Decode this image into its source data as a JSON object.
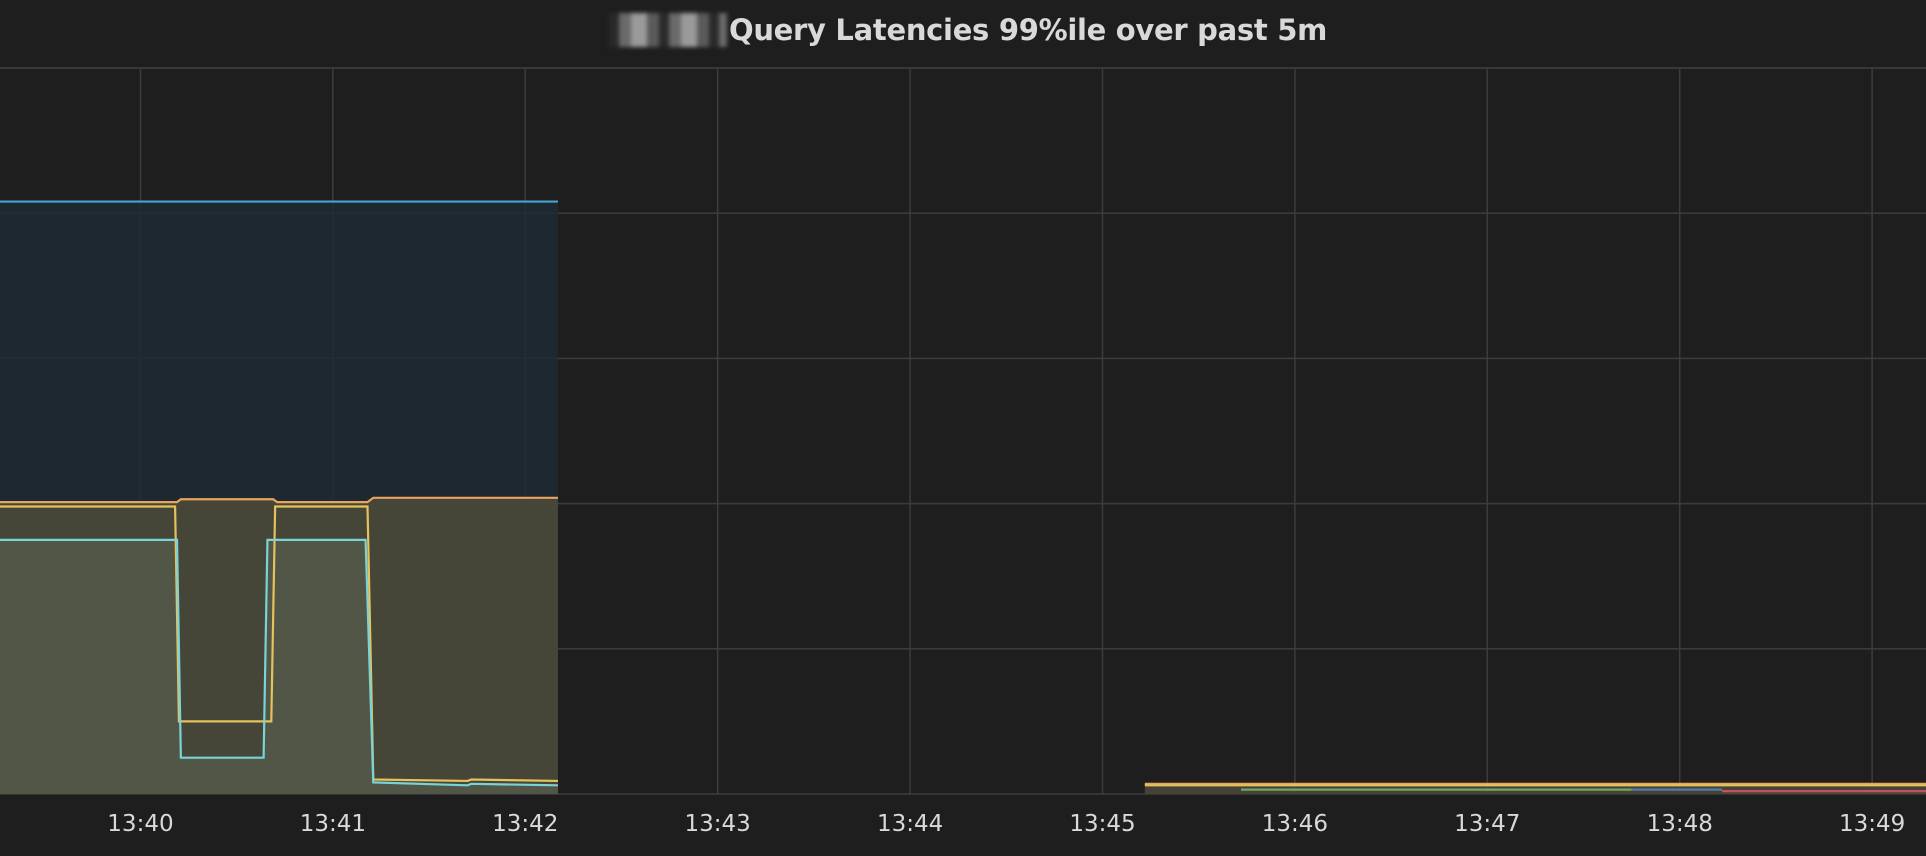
{
  "panel": {
    "title": "Query Latencies 99%ile over past 5m",
    "title_prefix_redacted": true
  },
  "colors": {
    "background": "#1f1e1f",
    "grid": "#3d3c3d",
    "axis_text": "#d8d9da",
    "blue": "#4aa0d6",
    "blue_fill": "#1f2a35",
    "orange": "#e8a35c",
    "yellow": "#e5c25b",
    "yellow_fill": "#4c4a3a",
    "cyan": "#7ad3d6",
    "cyan_fill": "#55594a",
    "green": "#6ea86a",
    "steelblue": "#4e7ea6",
    "red": "#c85060"
  },
  "chart_data": {
    "type": "area",
    "title": "Query Latencies 99%ile over past 5m",
    "xlabel": "",
    "ylabel": "",
    "x_ticks": [
      "13:40",
      "13:41",
      "13:42",
      "13:43",
      "13:44",
      "13:45",
      "13:46",
      "13:47",
      "13:48",
      "13:49"
    ],
    "xlim": [
      "13:39.27",
      "13:49.28"
    ],
    "ylim": [
      0,
      5
    ],
    "y_grid_lines": [
      1,
      2,
      3,
      4,
      5
    ],
    "grid": true,
    "legend": "none",
    "series": [
      {
        "color_key": "blue",
        "fill_key": "blue_fill",
        "fill": true,
        "points": [
          [
            "13:39.27",
            4.08
          ],
          [
            "13:42.17",
            4.08
          ]
        ]
      },
      {
        "color_key": "orange",
        "fill_key": "yellow_fill",
        "fill": true,
        "points": [
          [
            "13:39.27",
            2.01
          ],
          [
            "13:40.19",
            2.01
          ],
          [
            "13:40.21",
            2.03
          ],
          [
            "13:40.69",
            2.03
          ],
          [
            "13:40.71",
            2.01
          ],
          [
            "13:41.18",
            2.01
          ],
          [
            "13:41.21",
            2.04
          ],
          [
            "13:42.17",
            2.04
          ],
          [
            null,
            null
          ],
          [
            "13:45.22",
            0.07
          ],
          [
            "13:49.28",
            0.07
          ]
        ]
      },
      {
        "color_key": "yellow",
        "fill_key": null,
        "fill": false,
        "points": [
          [
            "13:39.27",
            1.98
          ],
          [
            "13:40.18",
            1.98
          ],
          [
            "13:40.20",
            0.5
          ],
          [
            "13:40.68",
            0.5
          ],
          [
            "13:40.70",
            1.98
          ],
          [
            "13:41.18",
            1.98
          ],
          [
            "13:41.21",
            0.1
          ],
          [
            "13:41.70",
            0.09
          ],
          [
            "13:41.72",
            0.1
          ],
          [
            "13:42.17",
            0.09
          ],
          [
            null,
            null
          ],
          [
            "13:45.22",
            0.06
          ],
          [
            "13:49.28",
            0.06
          ]
        ]
      },
      {
        "color_key": "cyan",
        "fill_key": "cyan_fill",
        "fill": true,
        "points": [
          [
            "13:39.27",
            1.75
          ],
          [
            "13:40.19",
            1.75
          ],
          [
            "13:40.21",
            0.25
          ],
          [
            "13:40.64",
            0.25
          ],
          [
            "13:40.66",
            1.75
          ],
          [
            "13:41.17",
            1.75
          ],
          [
            "13:41.21",
            0.08
          ],
          [
            "13:41.70",
            0.06
          ],
          [
            "13:41.72",
            0.07
          ],
          [
            "13:42.17",
            0.06
          ]
        ]
      },
      {
        "color_key": "green",
        "fill_key": null,
        "fill": false,
        "points": [
          [
            "13:45.72",
            0.03
          ],
          [
            "13:47.75",
            0.03
          ]
        ]
      },
      {
        "color_key": "steelblue",
        "fill_key": null,
        "fill": false,
        "points": [
          [
            "13:47.75",
            0.03
          ],
          [
            "13:48.22",
            0.03
          ]
        ]
      },
      {
        "color_key": "red",
        "fill_key": null,
        "fill": false,
        "points": [
          [
            "13:48.22",
            0.02
          ],
          [
            "13:49.28",
            0.02
          ]
        ]
      }
    ]
  }
}
